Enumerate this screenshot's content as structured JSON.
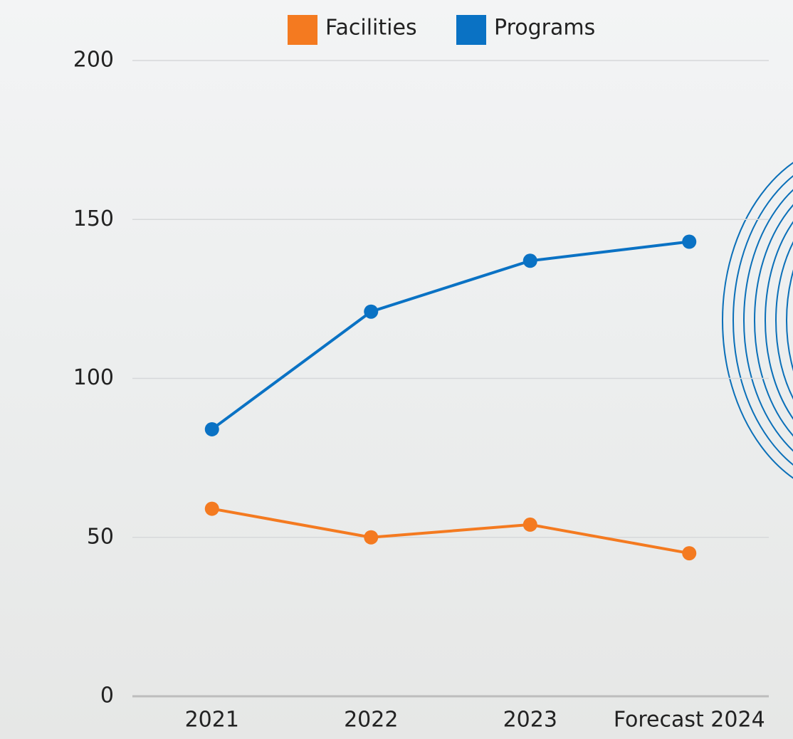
{
  "chart_data": {
    "type": "line",
    "categories": [
      "2021",
      "2022",
      "2023",
      "Forecast 2024"
    ],
    "series": [
      {
        "name": "Facilities",
        "color": "#f47a20",
        "values": [
          59,
          50,
          54,
          45
        ]
      },
      {
        "name": "Programs",
        "color": "#0a72c4",
        "values": [
          84,
          121,
          137,
          143
        ]
      }
    ],
    "ylim": [
      0,
      200
    ],
    "yticks": [
      0,
      50,
      100,
      150,
      200
    ],
    "grid": true
  }
}
